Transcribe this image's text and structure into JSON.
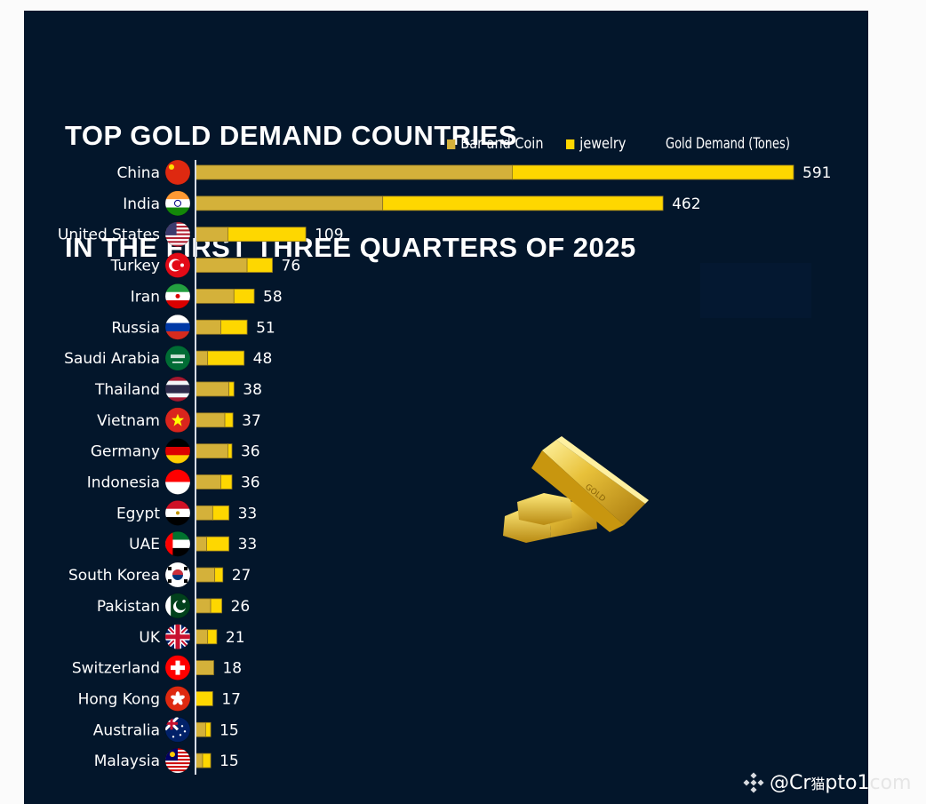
{
  "title": {
    "line1": "TOP GOLD DEMAND COUNTRIES",
    "line2": "IN THE FIRST THREE QUARTERS OF 2025"
  },
  "legend": {
    "items": [
      {
        "label": "Bar and Coin",
        "color": "#d4b13a"
      },
      {
        "label": "jewelry",
        "color": "#fed700"
      }
    ],
    "unit_label": "Gold Demand (Tones)"
  },
  "watermark": {
    "handle": "@Cr",
    "overlay_glyph": "猫",
    "handle_rest": "pto1",
    "handle_tail": "com"
  },
  "colors": {
    "background": "#03162b",
    "bar_and_coin": "#d4b13a",
    "jewelry": "#fed700",
    "text": "#ffffff"
  },
  "chart_data": {
    "type": "bar",
    "orientation": "horizontal",
    "stacked": true,
    "title": "TOP GOLD DEMAND COUNTRIES IN THE FIRST THREE QUARTERS OF 2025",
    "xlabel": "Gold Demand (Tones)",
    "ylabel": "",
    "xlim": [
      0,
      600
    ],
    "grid": false,
    "legend_position": "top-right",
    "categories": [
      "China",
      "India",
      "United States",
      "Turkey",
      "Iran",
      "Russia",
      "Saudi Arabia",
      "Thailand",
      "Vietnam",
      "Germany",
      "Indonesia",
      "Egypt",
      "UAE",
      "South Korea",
      "Pakistan",
      "UK",
      "Switzerland",
      "Hong Kong",
      "Australia",
      "Malaysia"
    ],
    "series": [
      {
        "name": "Bar and Coin",
        "color": "#d4b13a",
        "values": [
          313,
          185,
          32,
          51,
          38,
          25,
          12,
          33,
          29,
          32,
          25,
          17,
          11,
          19,
          15,
          12,
          18,
          0,
          10,
          7
        ]
      },
      {
        "name": "jewelry",
        "color": "#fed700",
        "values": [
          278,
          277,
          77,
          25,
          20,
          26,
          36,
          5,
          8,
          4,
          11,
          16,
          22,
          8,
          11,
          9,
          0,
          17,
          5,
          8
        ]
      }
    ],
    "totals": [
      591,
      462,
      109,
      76,
      58,
      51,
      48,
      38,
      37,
      36,
      36,
      33,
      33,
      27,
      26,
      21,
      18,
      17,
      15,
      15
    ],
    "flags": [
      "china-flag",
      "india-flag",
      "united-states-flag",
      "turkey-flag",
      "iran-flag",
      "russia-flag",
      "saudi-arabia-flag",
      "thailand-flag",
      "vietnam-flag",
      "germany-flag",
      "indonesia-flag",
      "egypt-flag",
      "uae-flag",
      "south-korea-flag",
      "pakistan-flag",
      "uk-flag",
      "switzerland-flag",
      "hong-kong-flag",
      "australia-flag",
      "malaysia-flag"
    ]
  }
}
